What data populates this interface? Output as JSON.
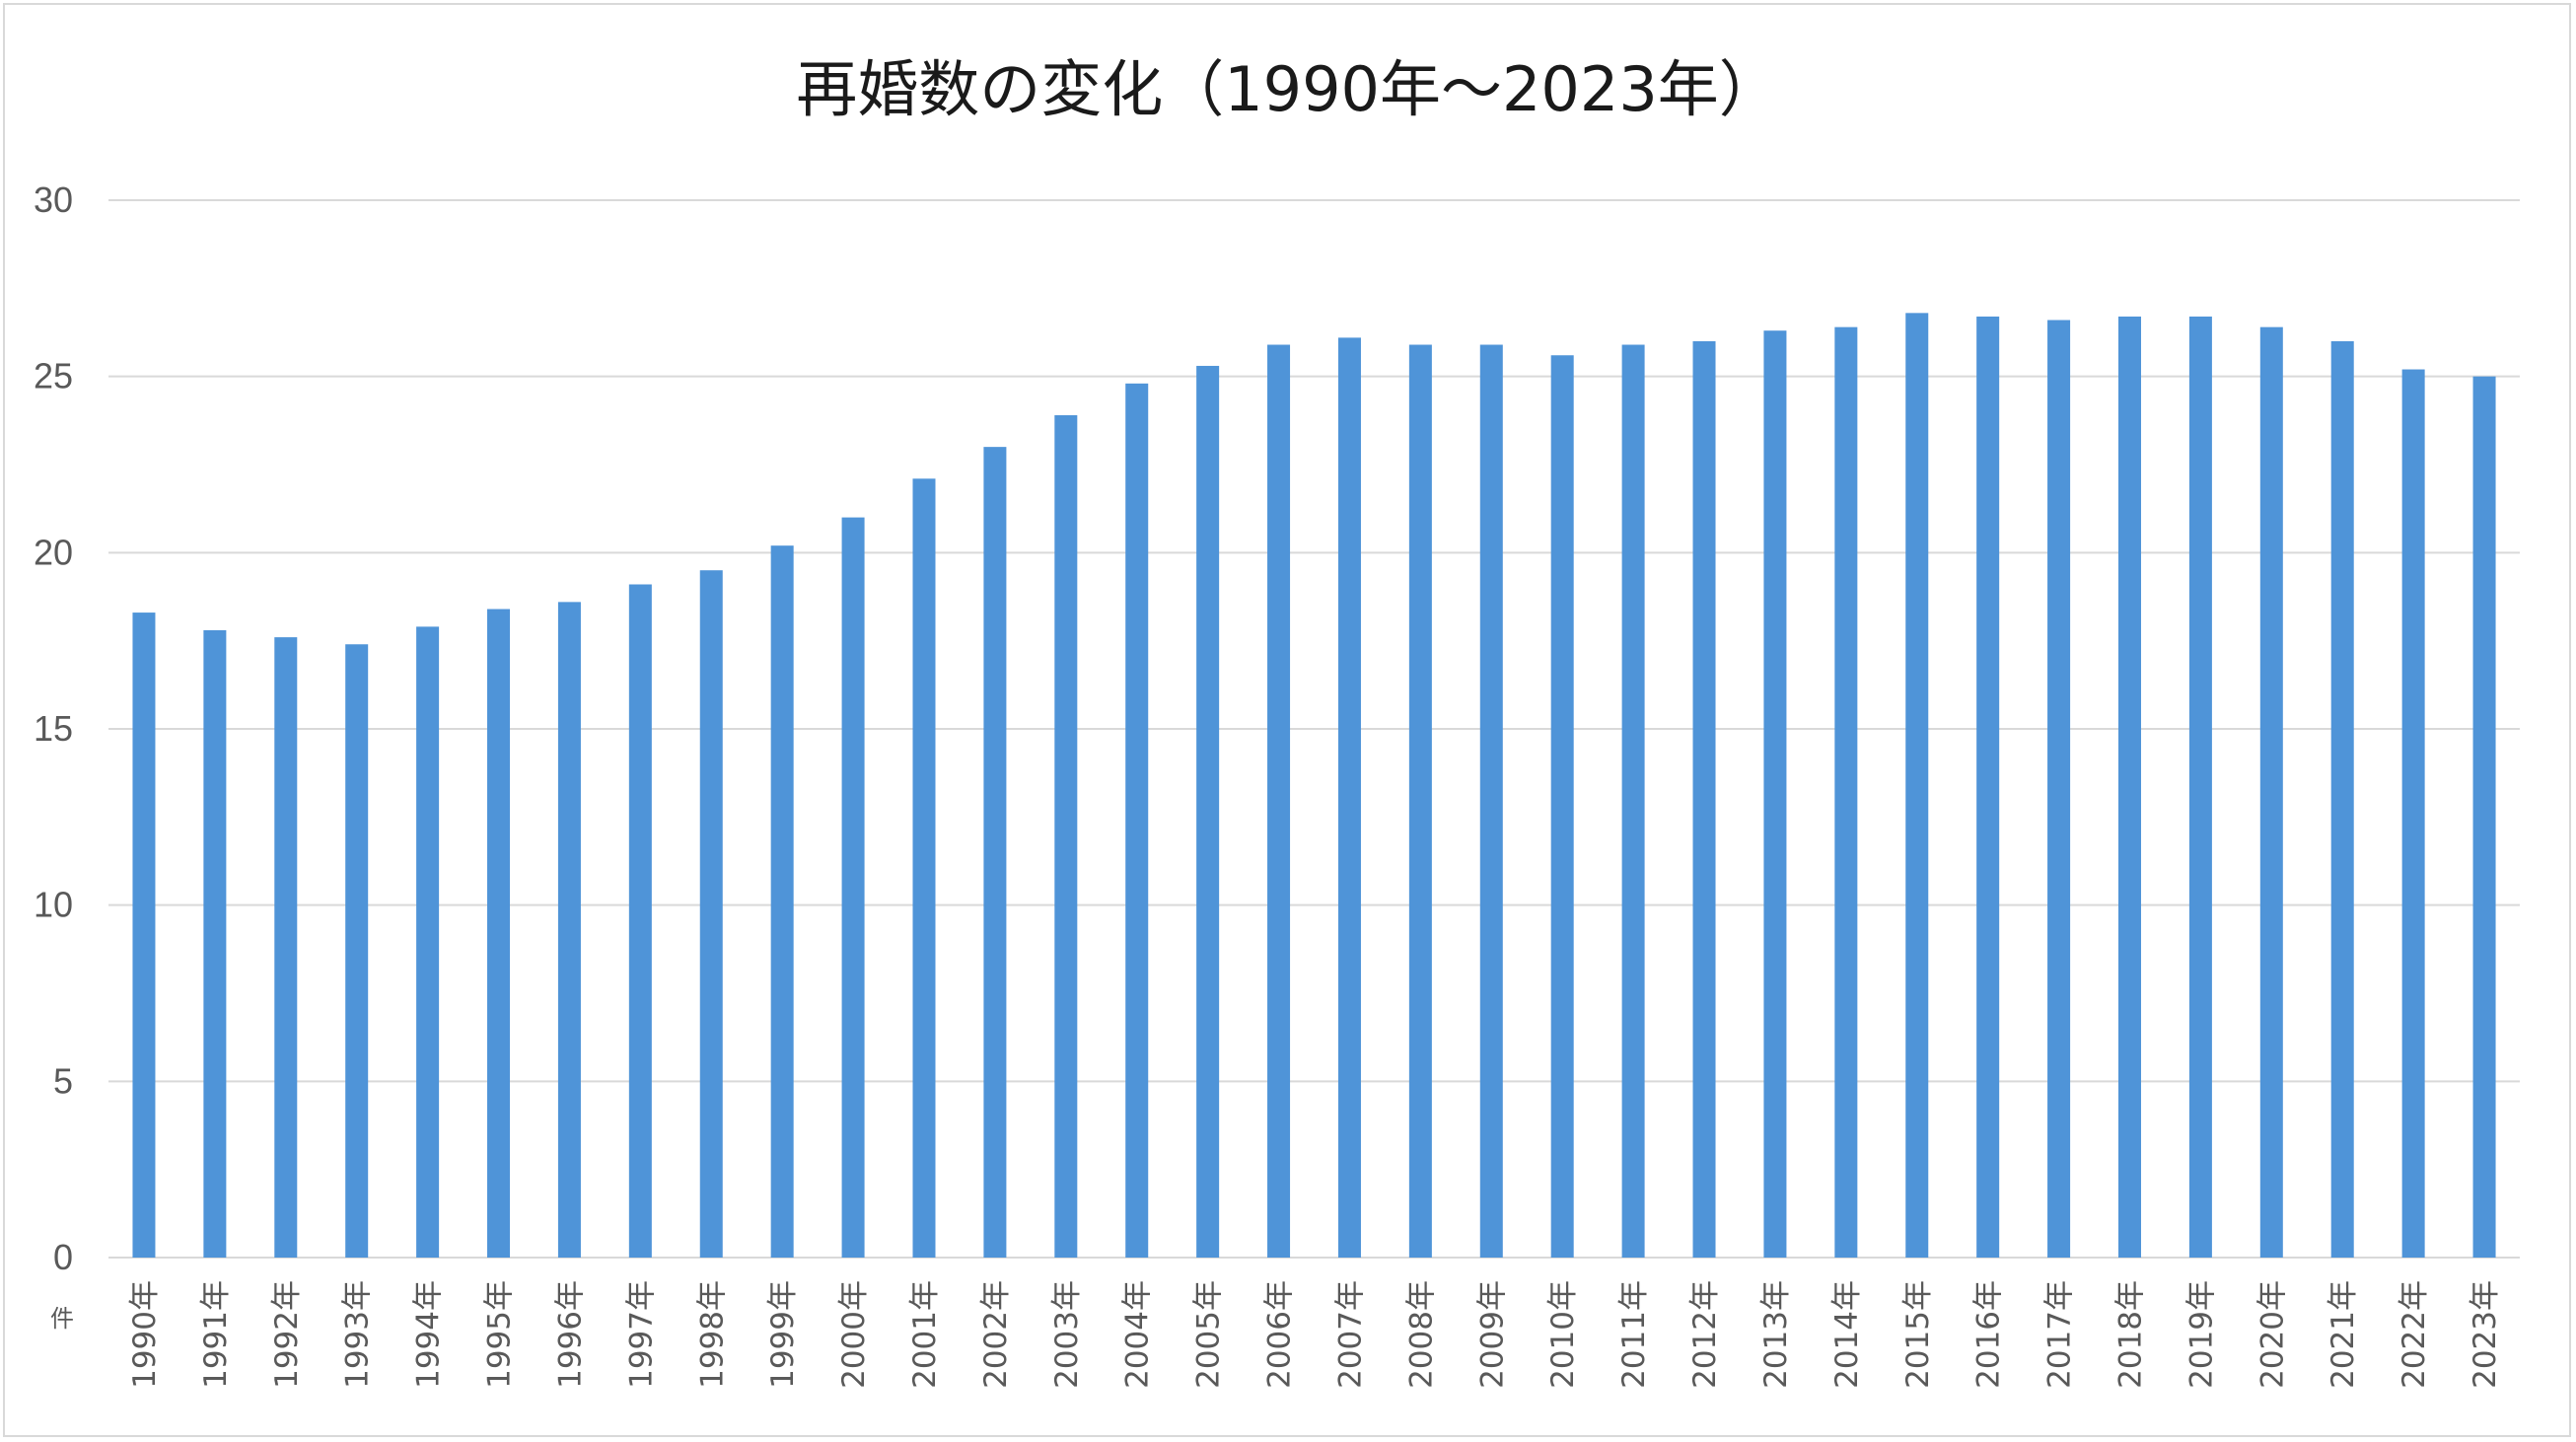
{
  "chart_data": {
    "type": "bar",
    "title": "再婚数の変化（1990年～2023年）",
    "ylabel": "件",
    "xlabel": "",
    "ylim": [
      0,
      30
    ],
    "yticks": [
      "0",
      "5",
      "10",
      "15",
      "20",
      "25",
      "30"
    ],
    "grid": true,
    "legend": "none",
    "bar_color": "#4f94d8",
    "categories": [
      "1990年",
      "1991年",
      "1992年",
      "1993年",
      "1994年",
      "1995年",
      "1996年",
      "1997年",
      "1998年",
      "1999年",
      "2000年",
      "2001年",
      "2002年",
      "2003年",
      "2004年",
      "2005年",
      "2006年",
      "2007年",
      "2008年",
      "2009年",
      "2010年",
      "2011年",
      "2012年",
      "2013年",
      "2014年",
      "2015年",
      "2016年",
      "2017年",
      "2018年",
      "2019年",
      "2020年",
      "2021年",
      "2022年",
      "2023年"
    ],
    "values": [
      18.3,
      17.8,
      17.6,
      17.4,
      17.9,
      18.4,
      18.6,
      19.1,
      19.5,
      20.2,
      21.0,
      22.1,
      23.0,
      23.9,
      24.8,
      25.3,
      25.9,
      26.1,
      25.9,
      25.9,
      25.6,
      25.9,
      26.0,
      26.3,
      26.4,
      26.8,
      26.7,
      26.6,
      26.7,
      26.7,
      26.4,
      26.0,
      25.2,
      25.0
    ]
  }
}
